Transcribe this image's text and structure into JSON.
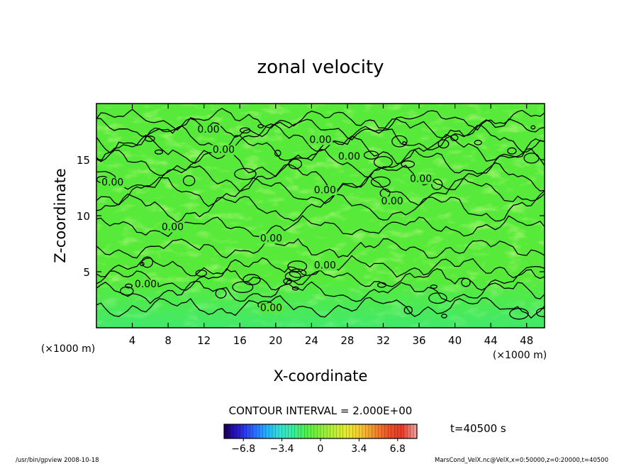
{
  "chart_data": {
    "type": "heatmap",
    "title": "zonal velocity",
    "xlabel": "X-coordinate",
    "ylabel": "Z-coordinate",
    "x_unit": "(×1000 m)",
    "y_unit": "(×1000 m)",
    "xlim": [
      0,
      50
    ],
    "ylim": [
      0,
      20
    ],
    "x_ticks": [
      4,
      8,
      12,
      16,
      20,
      24,
      28,
      32,
      36,
      40,
      44,
      48
    ],
    "y_ticks": [
      5,
      10,
      15
    ],
    "contour_interval_text": "CONTOUR INTERVAL = 2.000E+00",
    "time_label": "t=40500 s",
    "contour_labels": [
      {
        "text": "0.00",
        "x": 12.5,
        "y": 17.4
      },
      {
        "text": "0.00",
        "x": 14.2,
        "y": 15.6
      },
      {
        "text": "0.00",
        "x": 25.0,
        "y": 16.5
      },
      {
        "text": "0.00",
        "x": 28.2,
        "y": 15.0
      },
      {
        "text": "0.00",
        "x": 1.8,
        "y": 12.7
      },
      {
        "text": "0.00",
        "x": 25.5,
        "y": 12.0
      },
      {
        "text": "0.00",
        "x": 36.2,
        "y": 13.0
      },
      {
        "text": "0.00",
        "x": 33.0,
        "y": 11.0
      },
      {
        "text": "0.00",
        "x": 8.5,
        "y": 8.7
      },
      {
        "text": "0.00",
        "x": 19.5,
        "y": 7.7
      },
      {
        "text": "0.00",
        "x": 25.5,
        "y": 5.3
      },
      {
        "text": "0.00",
        "x": 5.5,
        "y": 3.6
      },
      {
        "text": "0.00",
        "x": 19.5,
        "y": 1.5
      }
    ],
    "colorbar": {
      "range": [
        -8.5,
        8.5
      ],
      "tick_values": [
        -6.8,
        -3.4,
        0,
        3.4,
        6.8
      ],
      "tick_labels": [
        "−6.8",
        "−3.4",
        "0",
        "3.4",
        "6.8"
      ],
      "colors": [
        "#1a006e",
        "#2a1ed6",
        "#2a62ff",
        "#22b0ff",
        "#33e2d5",
        "#38ef9a",
        "#52f046",
        "#86f03a",
        "#bdef34",
        "#e7ec30",
        "#f7c430",
        "#f48c2c",
        "#ee5228",
        "#e63824",
        "#f09a96"
      ]
    },
    "field_summary": "mostly near zero (green), weak positive/negative cells near surface"
  },
  "footer": {
    "left": "/usr/bin/gpview   2008-10-18",
    "right": "MarsCond_VelX.nc@VelX,x=0:50000,z=0:20000,t=40500"
  }
}
